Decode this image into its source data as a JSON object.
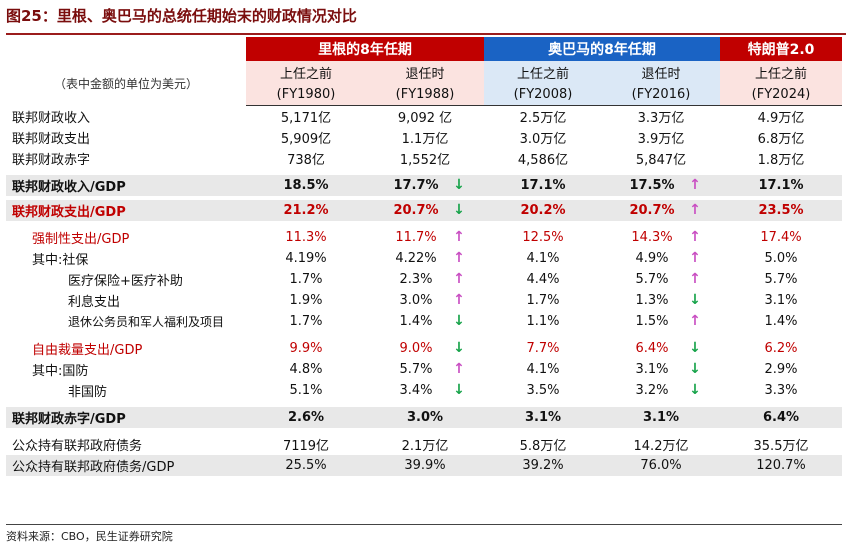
{
  "title": "图25：里根、奥巴马的总统任期始末的财政情况对比",
  "header": {
    "unit_note": "（表中金额的单位为美元）",
    "groups": [
      "里根的8年任期",
      "奥巴马的8年任期",
      "特朗普2.0"
    ],
    "sub": [
      "上任之前",
      "退任时",
      "上任之前",
      "退任时",
      "上任之前"
    ],
    "years": [
      "(FY1980)",
      "(FY1988)",
      "(FY2008)",
      "(FY2016)",
      "(FY2024)"
    ]
  },
  "rows": [
    {
      "label": "联邦财政收入",
      "values": [
        "5,171亿",
        "9,092 亿",
        "2.5万亿",
        "3.3万亿",
        "4.9万亿"
      ],
      "arrows": [
        "",
        "",
        "",
        "",
        ""
      ]
    },
    {
      "label": "联邦财政支出",
      "values": [
        "5,909亿",
        "1.1万亿",
        "3.0万亿",
        "3.9万亿",
        "6.8万亿"
      ],
      "arrows": [
        "",
        "",
        "",
        "",
        ""
      ]
    },
    {
      "label": "联邦财政赤字",
      "values": [
        "738亿",
        "1,552亿",
        "4,586亿",
        "5,847亿",
        "1.8万亿"
      ],
      "arrows": [
        "",
        "",
        "",
        "",
        ""
      ]
    },
    {
      "label": "联邦财政收入/GDP",
      "values": [
        "18.5%",
        "17.7%",
        "17.1%",
        "17.5%",
        "17.1%"
      ],
      "arrows": [
        "",
        "down",
        "",
        "up",
        ""
      ]
    },
    {
      "label": "联邦财政支出/GDP",
      "values": [
        "21.2%",
        "20.7%",
        "20.2%",
        "20.7%",
        "23.5%"
      ],
      "arrows": [
        "",
        "down",
        "",
        "up",
        ""
      ]
    },
    {
      "label": "强制性支出/GDP",
      "values": [
        "11.3%",
        "11.7%",
        "12.5%",
        "14.3%",
        "17.4%"
      ],
      "arrows": [
        "",
        "up",
        "",
        "up",
        ""
      ]
    },
    {
      "label": "其中:社保",
      "values": [
        "4.19%",
        "4.22%",
        "4.1%",
        "4.9%",
        "5.0%"
      ],
      "arrows": [
        "",
        "up",
        "",
        "up",
        ""
      ]
    },
    {
      "label": "医疗保险+医疗补助",
      "values": [
        "1.7%",
        "2.3%",
        "4.4%",
        "5.7%",
        "5.7%"
      ],
      "arrows": [
        "",
        "up",
        "",
        "up",
        ""
      ]
    },
    {
      "label": "利息支出",
      "values": [
        "1.9%",
        "3.0%",
        "1.7%",
        "1.3%",
        "3.1%"
      ],
      "arrows": [
        "",
        "up",
        "",
        "down",
        ""
      ]
    },
    {
      "label": "退休公务员和军人福利及项目",
      "values": [
        "1.7%",
        "1.4%",
        "1.1%",
        "1.5%",
        "1.4%"
      ],
      "arrows": [
        "",
        "down",
        "",
        "up",
        ""
      ]
    },
    {
      "label": "自由裁量支出/GDP",
      "values": [
        "9.9%",
        "9.0%",
        "7.7%",
        "6.4%",
        "6.2%"
      ],
      "arrows": [
        "",
        "down",
        "",
        "down",
        ""
      ]
    },
    {
      "label": "其中:国防",
      "values": [
        "4.8%",
        "5.7%",
        "4.1%",
        "3.1%",
        "2.9%"
      ],
      "arrows": [
        "",
        "up",
        "",
        "down",
        ""
      ]
    },
    {
      "label": "非国防",
      "values": [
        "5.1%",
        "3.4%",
        "3.5%",
        "3.2%",
        "3.3%"
      ],
      "arrows": [
        "",
        "down",
        "",
        "down",
        ""
      ]
    },
    {
      "label": "联邦财政赤字/GDP",
      "values": [
        "2.6%",
        "3.0%",
        "3.1%",
        "3.1%",
        "6.4%"
      ],
      "arrows": [
        "",
        "",
        "",
        "",
        ""
      ]
    },
    {
      "label": "公众持有联邦政府债务",
      "values": [
        "7119亿",
        "2.1万亿",
        "5.8万亿",
        "14.2万亿",
        "35.5万亿"
      ],
      "arrows": [
        "",
        "",
        "",
        "",
        ""
      ]
    },
    {
      "label": "公众持有联邦政府债务/GDP",
      "values": [
        "25.5%",
        "39.9%",
        "39.2%",
        "76.0%",
        "120.7%"
      ],
      "arrows": [
        "",
        "",
        "",
        "",
        ""
      ]
    }
  ],
  "source": "资料来源：CBO，民生证券研究院",
  "colors": {
    "reagan": "#c00000",
    "obama": "#1a63c4",
    "trump": "#c00000",
    "up_arrow": "#c94fc2",
    "down_arrow": "#17a34a"
  }
}
